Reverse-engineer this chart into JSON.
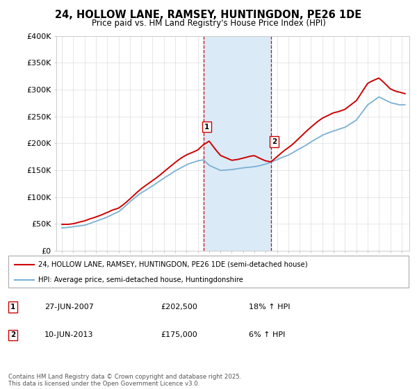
{
  "title": "24, HOLLOW LANE, RAMSEY, HUNTINGDON, PE26 1DE",
  "subtitle": "Price paid vs. HM Land Registry's House Price Index (HPI)",
  "ylabel_ticks": [
    "£0",
    "£50K",
    "£100K",
    "£150K",
    "£200K",
    "£250K",
    "£300K",
    "£350K",
    "£400K"
  ],
  "ylim": [
    0,
    400000
  ],
  "xlim_start": 1994.5,
  "xlim_end": 2025.7,
  "sale1_date": 2007.49,
  "sale1_price": 202500,
  "sale1_label": "1",
  "sale2_date": 2013.44,
  "sale2_price": 175000,
  "sale2_label": "2",
  "legend_line1": "24, HOLLOW LANE, RAMSEY, HUNTINGDON, PE26 1DE (semi-detached house)",
  "legend_line2": "HPI: Average price, semi-detached house, Huntingdonshire",
  "footnote": "Contains HM Land Registry data © Crown copyright and database right 2025.\nThis data is licensed under the Open Government Licence v3.0.",
  "line_color": "#cc0000",
  "hpi_color": "#7ab0d4",
  "shade_color": "#daeaf7",
  "vline_color": "#cc0000",
  "hpi_x": [
    1995,
    1996,
    1997,
    1998,
    1999,
    2000,
    2001,
    2002,
    2003,
    2004,
    2005,
    2006,
    2007,
    2007.5,
    2008,
    2009,
    2010,
    2011,
    2012,
    2013,
    2013.44,
    2014,
    2015,
    2016,
    2017,
    2018,
    2019,
    2020,
    2021,
    2022,
    2023,
    2024,
    2025.3
  ],
  "hpi_y": [
    43000,
    46000,
    50000,
    56000,
    64000,
    74000,
    90000,
    108000,
    122000,
    138000,
    152000,
    163000,
    170000,
    172000,
    162000,
    152000,
    153000,
    157000,
    160000,
    165000,
    168000,
    173000,
    183000,
    195000,
    208000,
    220000,
    228000,
    234000,
    248000,
    278000,
    292000,
    282000,
    275000
  ],
  "price_x": [
    1995,
    1996,
    1997,
    1998,
    1999,
    2000,
    2001,
    2002,
    2003,
    2004,
    2005,
    2006,
    2007,
    2007.49,
    2008,
    2009,
    2010,
    2011,
    2012,
    2013,
    2013.44,
    2014,
    2015,
    2016,
    2017,
    2018,
    2019,
    2020,
    2021,
    2022,
    2023,
    2024,
    2025.3
  ],
  "price_y": [
    50000,
    53000,
    57000,
    63000,
    72000,
    83000,
    100000,
    120000,
    137000,
    154000,
    168000,
    182000,
    193000,
    202500,
    210000,
    185000,
    178000,
    182000,
    186000,
    177000,
    175000,
    183000,
    198000,
    215000,
    233000,
    248000,
    258000,
    265000,
    278000,
    308000,
    318000,
    300000,
    292000
  ]
}
